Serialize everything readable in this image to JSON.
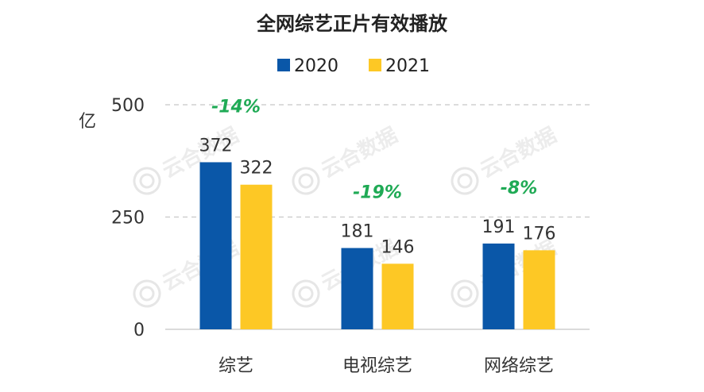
{
  "chart_data": {
    "type": "bar",
    "title": "全网综艺正片有效播放",
    "ylabel": "亿",
    "xlabel": "",
    "categories": [
      "综艺",
      "电视综艺",
      "网络综艺"
    ],
    "series": [
      {
        "name": "2020",
        "values": [
          372,
          181,
          191
        ],
        "color": "#0a57a8"
      },
      {
        "name": "2021",
        "values": [
          322,
          146,
          176
        ],
        "color": "#fdc825"
      }
    ],
    "changes": [
      "-14%",
      "-19%",
      "-8%"
    ],
    "ylim": [
      0,
      500
    ],
    "yticks": [
      0,
      250,
      500
    ],
    "grid": "dashed at 250 and 500",
    "legend": "top-center",
    "watermark_text": "云合数据"
  }
}
